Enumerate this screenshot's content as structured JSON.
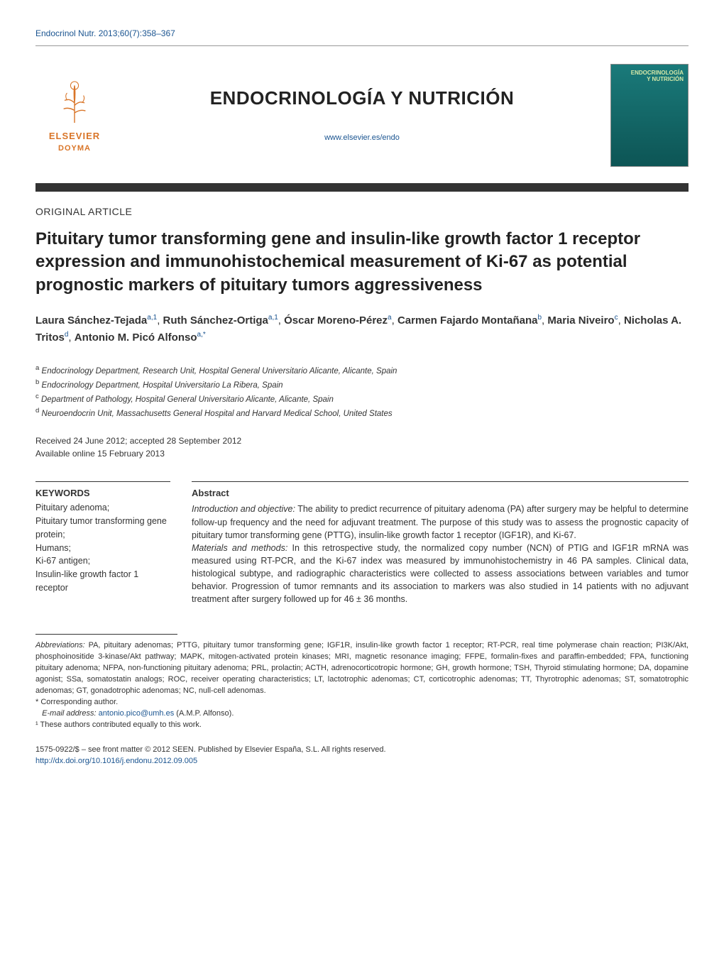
{
  "header": {
    "citation": "Endocrinol Nutr. 2013;60(7):358–367",
    "journal_title": "ENDOCRINOLOGÍA Y NUTRICIÓN",
    "journal_url": "www.elsevier.es/endo",
    "publisher_name": "ELSEVIER",
    "publisher_sub": "DOYMA",
    "cover_title_line1": "ENDOCRINOLOGÍA",
    "cover_title_line2": "Y NUTRICIÓN"
  },
  "article": {
    "section_label": "ORIGINAL ARTICLE",
    "title": "Pituitary tumor transforming gene and insulin-like growth factor 1 receptor expression and immunohistochemical measurement of Ki-67 as potential prognostic markers of pituitary tumors aggressiveness",
    "authors": [
      {
        "name": "Laura Sánchez-Tejada",
        "marks": "a,1"
      },
      {
        "name": "Ruth Sánchez-Ortiga",
        "marks": "a,1"
      },
      {
        "name": "Óscar Moreno-Pérez",
        "marks": "a"
      },
      {
        "name": "Carmen Fajardo Montañana",
        "marks": "b"
      },
      {
        "name": "Maria Niveiro",
        "marks": "c"
      },
      {
        "name": "Nicholas A. Tritos",
        "marks": "d"
      },
      {
        "name": "Antonio M. Picó Alfonso",
        "marks": "a,*"
      }
    ],
    "affiliations": [
      {
        "mark": "a",
        "text": "Endocrinology Department, Research Unit, Hospital General Universitario Alicante, Alicante, Spain"
      },
      {
        "mark": "b",
        "text": "Endocrinology Department, Hospital Universitario La Ribera, Spain"
      },
      {
        "mark": "c",
        "text": "Department of Pathology, Hospital General Universitario Alicante, Alicante, Spain"
      },
      {
        "mark": "d",
        "text": "Neuroendocrin Unit, Massachusetts General Hospital and Harvard Medical School, United States"
      }
    ],
    "received": "Received 24 June 2012; accepted 28 September 2012",
    "available": "Available online 15 February 2013"
  },
  "keywords": {
    "heading": "KEYWORDS",
    "items": "Pituitary adenoma;\nPituitary tumor transforming gene protein;\nHumans;\nKi-67 antigen;\nInsulin-like growth factor 1 receptor"
  },
  "abstract": {
    "heading": "Abstract",
    "intro_label": "Introduction and objective:",
    "intro_text": " The ability to predict recurrence of pituitary adenoma (PA) after surgery may be helpful to determine follow-up frequency and the need for adjuvant treatment. The purpose of this study was to assess the prognostic capacity of pituitary tumor transforming gene (PTTG), insulin-like growth factor 1 receptor (IGF1R), and Ki-67.",
    "methods_label": "Materials and methods:",
    "methods_text": " In this retrospective study, the normalized copy number (NCN) of PTIG and IGF1R mRNA was measured using RT-PCR, and the Ki-67 index was measured by immunohistochemistry in 46 PA samples. Clinical data, histological subtype, and radiographic characteristics were collected to assess associations between variables and tumor behavior. Progression of tumor remnants and its association to markers was also studied in 14 patients with no adjuvant treatment after surgery followed up for 46 ± 36 months."
  },
  "footnotes": {
    "abbrev_label": "Abbreviations:",
    "abbrev_text": " PA, pituitary adenomas; PTTG, pituitary tumor transforming gene; IGF1R, insulin-like growth factor 1 receptor; RT-PCR, real time polymerase chain reaction; PI3K/Akt, phosphoinositide 3-kinase/Akt pathway; MAPK, mitogen-activated protein kinases; MRI, magnetic resonance imaging; FFPE, formalin-fixes and paraffin-embedded; FPA, functioning pituitary adenoma; NFPA, non-functioning pituitary adenoma; PRL, prolactin; ACTH, adrenocorticotropic hormone; GH, growth hormone; TSH, Thyroid stimulating hormone; DA, dopamine agonist; SSa, somatostatin analogs; ROC, receiver operating characteristics; LT, lactotrophic adenomas; CT, corticotrophic adenomas; TT, Thyrotrophic adenomas; ST, somatotrophic adenomas; GT, gonadotrophic adenomas; NC, null-cell adenomas.",
    "corresponding": "* Corresponding author.",
    "email_label": "E-mail address:",
    "email": "antonio.pico@umh.es",
    "email_owner": " (A.M.P. Alfonso).",
    "equal": "¹ These authors contributed equally to this work."
  },
  "copyright": {
    "line1": "1575-0922/$ – see front matter © 2012 SEEN. Published by Elsevier España, S.L. All rights reserved.",
    "doi": "http://dx.doi.org/10.1016/j.endonu.2012.09.005"
  },
  "colors": {
    "link": "#1a5490",
    "publisher": "#d97528",
    "cover_bg_top": "#1a7a7a",
    "cover_bg_bottom": "#0d5555",
    "text": "#333333"
  }
}
